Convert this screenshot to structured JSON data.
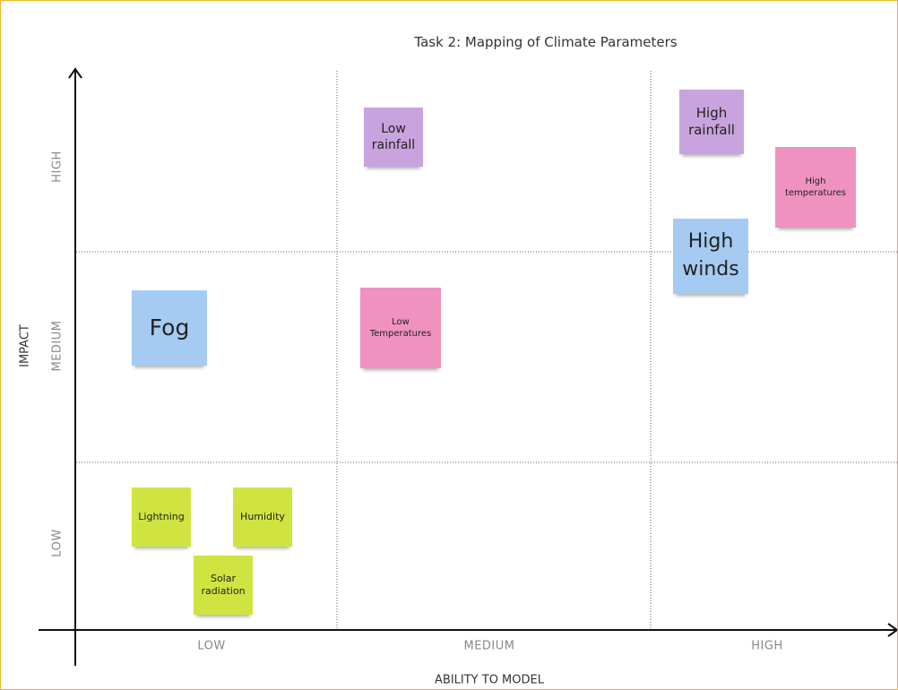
{
  "title": "Task 2: Mapping of Climate Parameters",
  "y_axis": {
    "label": "IMPACT",
    "levels": [
      "HIGH",
      "MEDIUM",
      "LOW"
    ]
  },
  "x_axis": {
    "label": "ABILITY TO MODEL",
    "levels": [
      "LOW",
      "MEDIUM",
      "HIGH"
    ]
  },
  "notes": [
    {
      "text": "Low rainfall"
    },
    {
      "text": "High rainfall"
    },
    {
      "text": "High temperatures"
    },
    {
      "text": "High winds"
    },
    {
      "text": "Fog"
    },
    {
      "text": "Low Temperatures"
    },
    {
      "text": "Lightning"
    },
    {
      "text": "Humidity"
    },
    {
      "text": "Solar radiation"
    }
  ]
}
